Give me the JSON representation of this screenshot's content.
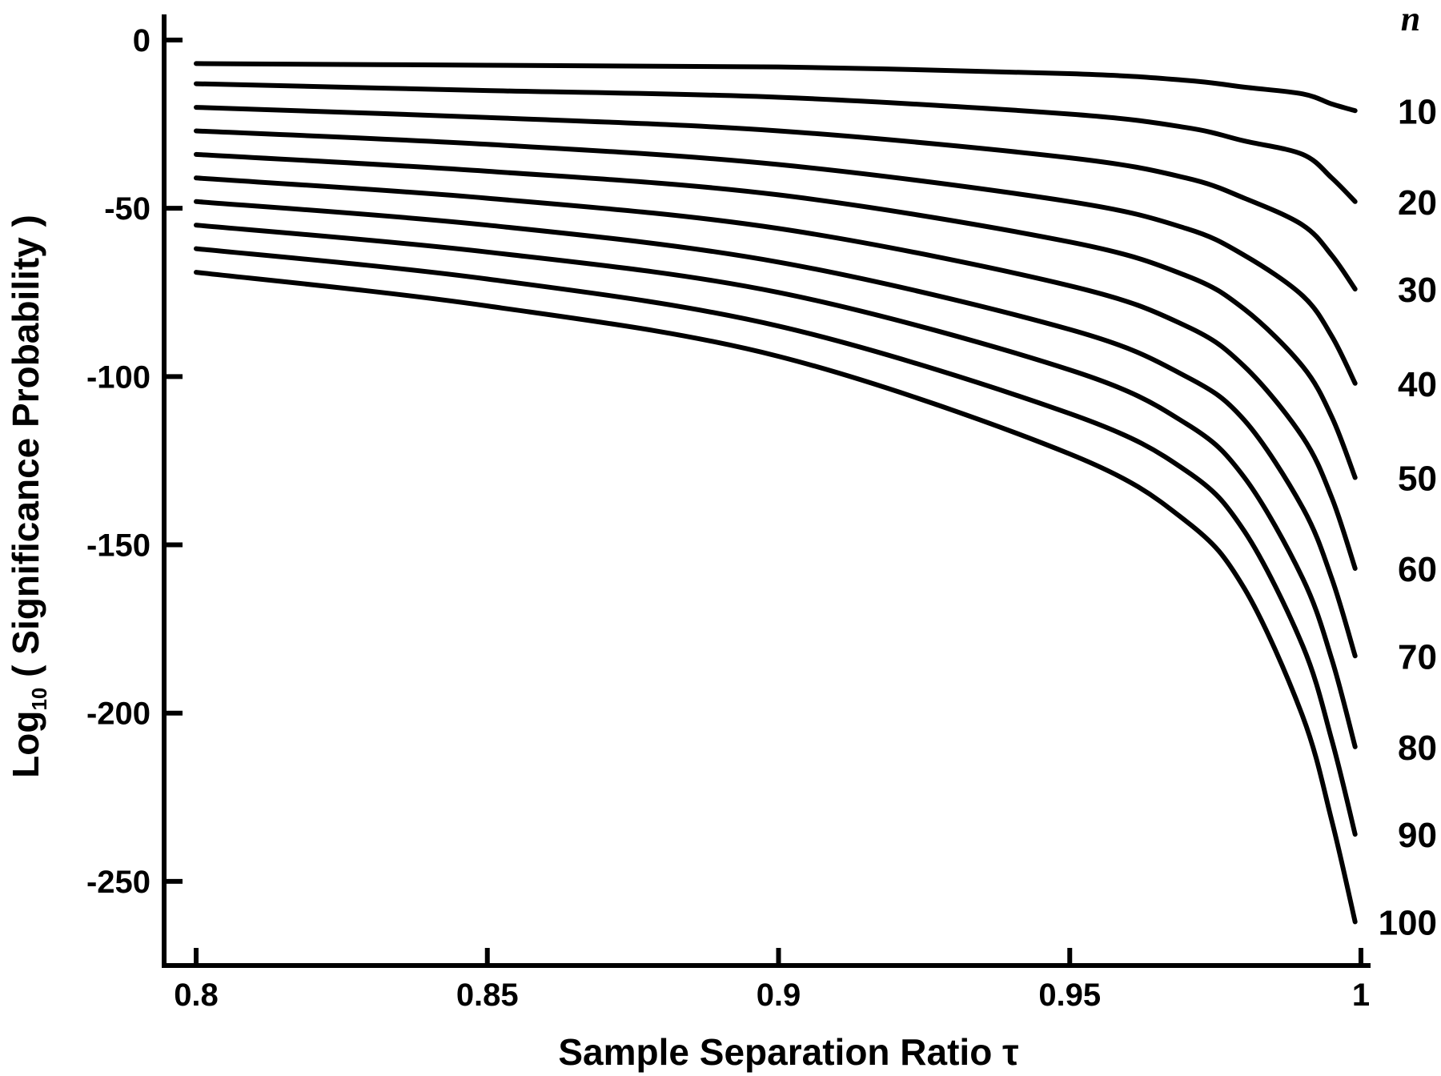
{
  "chart_data": {
    "type": "line",
    "title": "",
    "xlabel": "Sample Separation Ratio τ",
    "ylabel_parts": {
      "prefix": "Log",
      "subscript": "10",
      "suffix": " ( Significance Probability )"
    },
    "series_title": "n",
    "xlim": [
      0.8,
      1.0
    ],
    "ylim": [
      -275,
      0
    ],
    "x_ticks": [
      0.8,
      0.85,
      0.9,
      0.95,
      1
    ],
    "x_tick_labels": [
      "0.8",
      "0.85",
      "0.9",
      "0.95",
      "1"
    ],
    "y_ticks": [
      0,
      -50,
      -100,
      -150,
      -200,
      -250
    ],
    "y_tick_labels": [
      "0",
      "-50",
      "-100",
      "-150",
      "-200",
      "-250"
    ],
    "grid": false,
    "x": [
      0.8,
      0.85,
      0.9,
      0.95,
      0.97,
      0.98,
      0.99,
      0.995,
      0.999
    ],
    "series": [
      {
        "name": "10",
        "values": [
          -7,
          -7.5,
          -8,
          -10,
          -12,
          -14,
          -16,
          -19,
          -21
        ]
      },
      {
        "name": "20",
        "values": [
          -13,
          -15,
          -17,
          -22,
          -26,
          -30,
          -34,
          -41,
          -48
        ]
      },
      {
        "name": "30",
        "values": [
          -20,
          -23,
          -27,
          -35,
          -41,
          -47,
          -55,
          -64,
          -74
        ]
      },
      {
        "name": "40",
        "values": [
          -27,
          -31,
          -37,
          -48,
          -56,
          -64,
          -76,
          -88,
          -102
        ]
      },
      {
        "name": "50",
        "values": [
          -34,
          -39,
          -46,
          -60,
          -70,
          -80,
          -97,
          -112,
          -130
        ]
      },
      {
        "name": "60",
        "values": [
          -41,
          -47,
          -56,
          -73,
          -85,
          -97,
          -118,
          -136,
          -157
        ]
      },
      {
        "name": "70",
        "values": [
          -48,
          -55,
          -66,
          -86,
          -100,
          -113,
          -139,
          -160,
          -183
        ]
      },
      {
        "name": "80",
        "values": [
          -55,
          -63,
          -75,
          -98,
          -114,
          -130,
          -160,
          -184,
          -210
        ]
      },
      {
        "name": "90",
        "values": [
          -62,
          -71,
          -85,
          -111,
          -128,
          -146,
          -180,
          -208,
          -236
        ]
      },
      {
        "name": "100",
        "values": [
          -69,
          -79,
          -94,
          -123,
          -143,
          -163,
          -201,
          -232,
          -262
        ]
      }
    ]
  }
}
